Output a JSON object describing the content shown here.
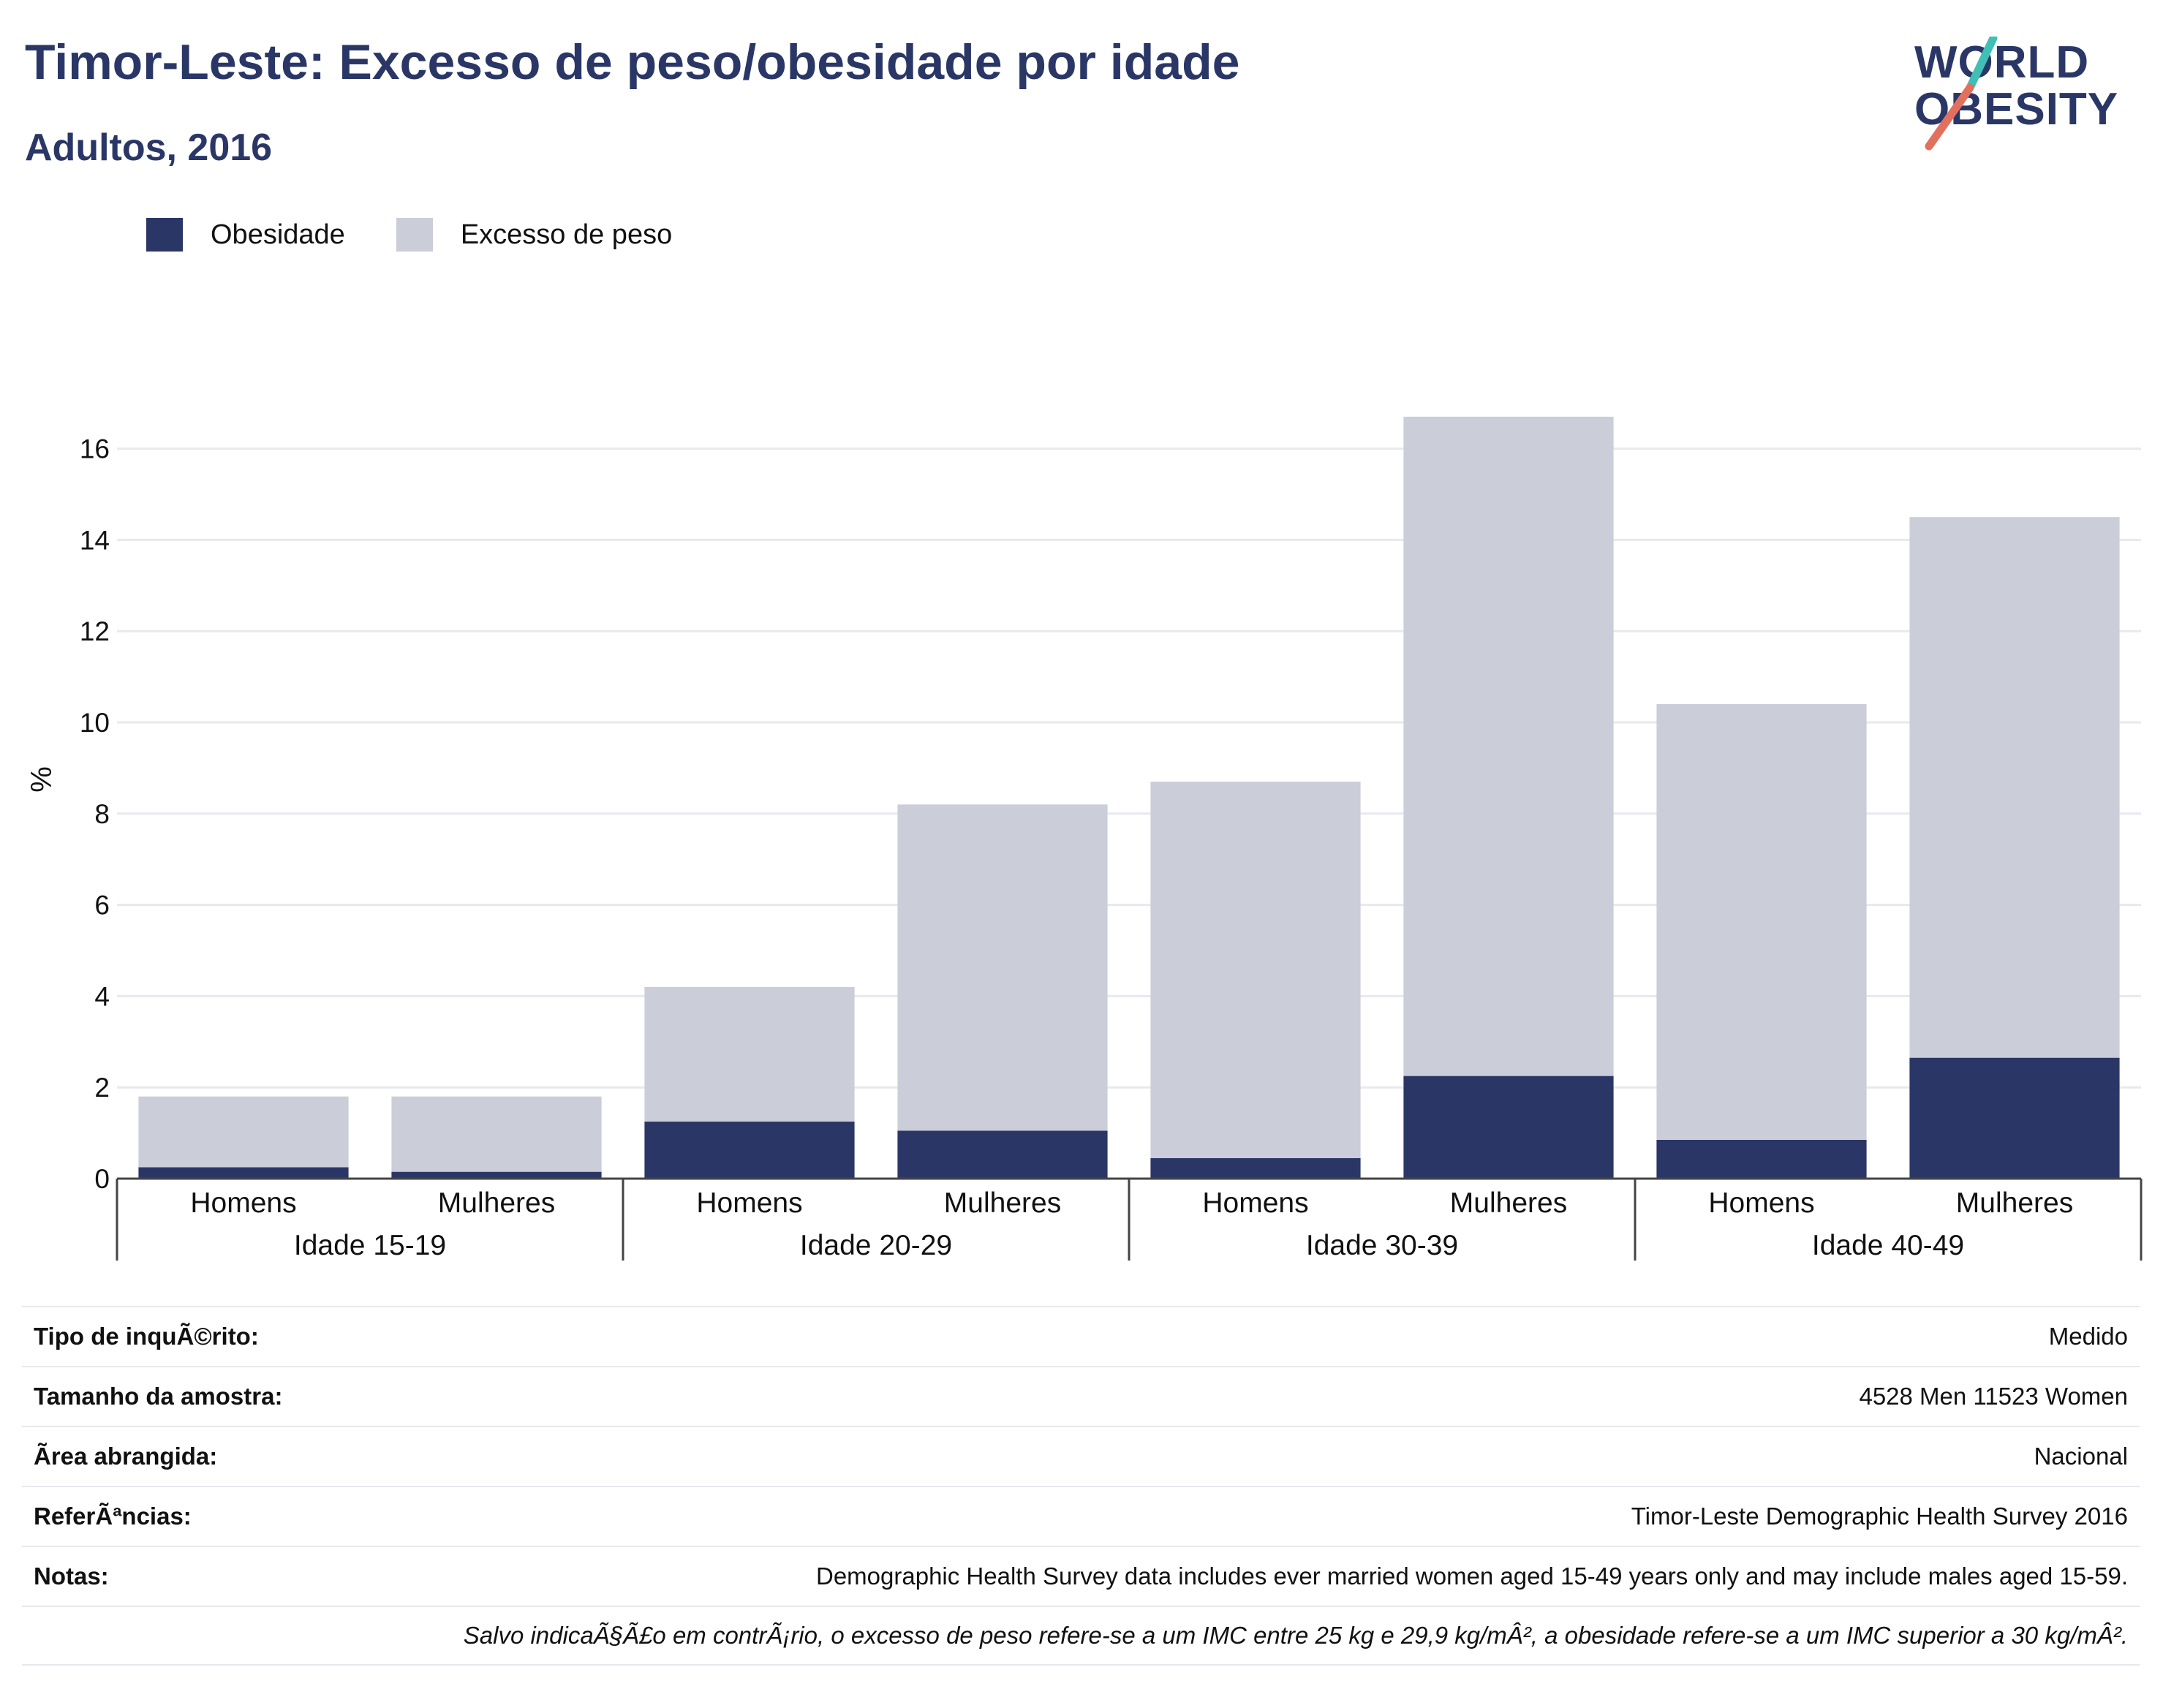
{
  "header": {
    "title": "Timor-Leste: Excesso de peso/obesidade por idade",
    "subtitle": "Adultos, 2016"
  },
  "logo": {
    "line1": "WORLD",
    "line2": "OBESITY",
    "icon": "world-obesity-logo-icon",
    "slash_colors": [
      "#3fbfb6",
      "#e2705f"
    ]
  },
  "colors": {
    "obesity": "#2a3766",
    "overweight": "#cbcdd9",
    "title": "#2a3766",
    "grid": "#e8e9ef",
    "axis": "#444444"
  },
  "chart_data": {
    "type": "bar",
    "stacked": true,
    "ylabel": "%",
    "ylim": [
      0,
      17.5
    ],
    "yticks": [
      0,
      2,
      4,
      6,
      8,
      10,
      12,
      14,
      16
    ],
    "grid": true,
    "legend_position": "top-left",
    "groups": [
      "Idade 15-19",
      "Idade 20-29",
      "Idade 30-39",
      "Idade 40-49"
    ],
    "categories": [
      "Homens",
      "Mulheres",
      "Homens",
      "Mulheres",
      "Homens",
      "Mulheres",
      "Homens",
      "Mulheres"
    ],
    "group_index": [
      0,
      0,
      1,
      1,
      2,
      2,
      3,
      3
    ],
    "series": [
      {
        "name": "Obesidade",
        "values": [
          0.25,
          0.15,
          1.25,
          1.05,
          0.45,
          2.25,
          0.85,
          2.65
        ]
      },
      {
        "name": "Excesso de peso",
        "values": [
          1.55,
          1.65,
          2.95,
          7.15,
          8.25,
          14.45,
          9.55,
          11.85
        ]
      }
    ]
  },
  "info_table": [
    {
      "key": "Tipo de inquÃ©rito:",
      "value": "Medido"
    },
    {
      "key": "Tamanho da amostra:",
      "value": "4528 Men 11523 Women"
    },
    {
      "key": "Ã\u001frea abrangida:",
      "value": "Nacional"
    },
    {
      "key": "ReferÃªncias:",
      "value": "Timor-Leste Demographic Health Survey 2016"
    },
    {
      "key": "Notas:",
      "value": "Demographic Health Survey data includes ever married women aged 15-49 years only and may include males aged 15-59."
    },
    {
      "key": "",
      "value": "Salvo indicaÃ§Ã£o em contrÃ¡rio, o excesso de peso refere-se a um IMC entre 25 kg e 29,9 kg/mÂ², a obesidade refere-se a um IMC superior a 30 kg/mÂ²."
    }
  ]
}
